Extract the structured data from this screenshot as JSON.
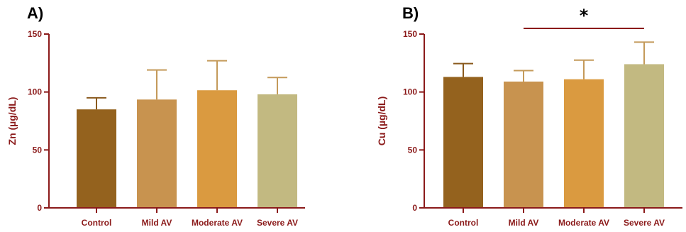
{
  "colors": {
    "axis": "#8b1a1a",
    "error_bar_dark": "#8a5a1e",
    "error_bar_light": "#c49a5a"
  },
  "chart_data": [
    {
      "panel_label": "A)",
      "type": "bar",
      "categories": [
        "Control",
        "Mild AV",
        "Moderate AV",
        "Severe AV"
      ],
      "values": [
        85,
        93.5,
        101.5,
        98
      ],
      "errors": [
        10,
        25.5,
        25.5,
        14.5
      ],
      "bar_colors": [
        "#94621e",
        "#c8934f",
        "#da9a40",
        "#c2b981"
      ],
      "ylabel": "Zn (µg/dL)",
      "ylim": [
        0,
        150
      ],
      "yticks": [
        "0",
        "50",
        "100",
        "150"
      ],
      "significance": []
    },
    {
      "panel_label": "B)",
      "type": "bar",
      "categories": [
        "Control",
        "Mild AV",
        "Moderate AV",
        "Severe AV"
      ],
      "values": [
        113,
        109,
        111,
        124
      ],
      "errors": [
        11.5,
        9.5,
        16.5,
        19
      ],
      "bar_colors": [
        "#94621e",
        "#c8934f",
        "#da9a40",
        "#c2b981"
      ],
      "ylabel": "Cu (µg/dL)",
      "ylim": [
        0,
        150
      ],
      "yticks": [
        "0",
        "50",
        "100",
        "150"
      ],
      "significance": [
        {
          "from": "Mild AV",
          "to": "Severe AV",
          "mark": "*"
        }
      ]
    }
  ]
}
